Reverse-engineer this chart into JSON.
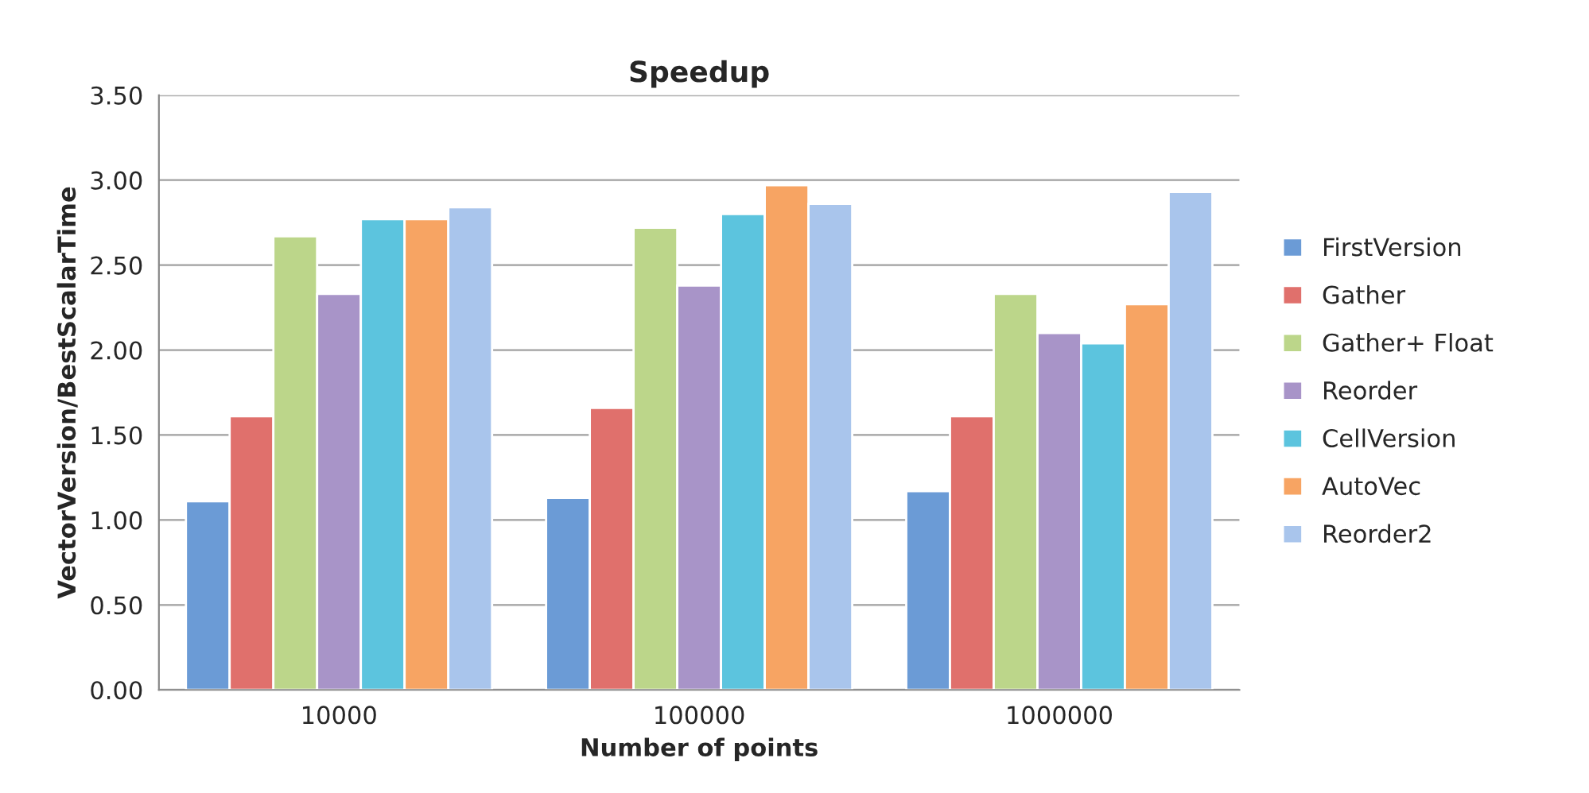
{
  "chart_data": {
    "type": "bar",
    "title": "Speedup",
    "xlabel": "Number of points",
    "ylabel": "VectorVersion/BestScalarTime",
    "categories": [
      "10000",
      "100000",
      "1000000"
    ],
    "series": [
      {
        "name": "FirstVersion",
        "color": "#6b9bd6",
        "values": [
          1.11,
          1.13,
          1.17
        ]
      },
      {
        "name": "Gather",
        "color": "#e0706c",
        "values": [
          1.61,
          1.66,
          1.61
        ]
      },
      {
        "name": "Gather+ Float",
        "color": "#bcd68a",
        "values": [
          2.67,
          2.72,
          2.33
        ]
      },
      {
        "name": "Reorder",
        "color": "#a894c8",
        "values": [
          2.33,
          2.38,
          2.1
        ]
      },
      {
        "name": "CellVersion",
        "color": "#5cc4de",
        "values": [
          2.77,
          2.8,
          2.04
        ]
      },
      {
        "name": "AutoVec",
        "color": "#f7a463",
        "values": [
          2.77,
          2.97,
          2.27
        ]
      },
      {
        "name": "Reorder2",
        "color": "#a9c5ec",
        "values": [
          2.84,
          2.86,
          2.93
        ]
      }
    ],
    "ylim": [
      0,
      3.5
    ],
    "yticks": [
      {
        "value": 0,
        "label": "0.00"
      },
      {
        "value": 0.5,
        "label": "0.50"
      },
      {
        "value": 1,
        "label": "1.00"
      },
      {
        "value": 1.5,
        "label": "1.50"
      },
      {
        "value": 2,
        "label": "2.00"
      },
      {
        "value": 2.5,
        "label": "2.50"
      },
      {
        "value": 3,
        "label": "3.00"
      },
      {
        "value": 3.5,
        "label": "3.50"
      }
    ],
    "grid": "y",
    "legend": "right"
  }
}
